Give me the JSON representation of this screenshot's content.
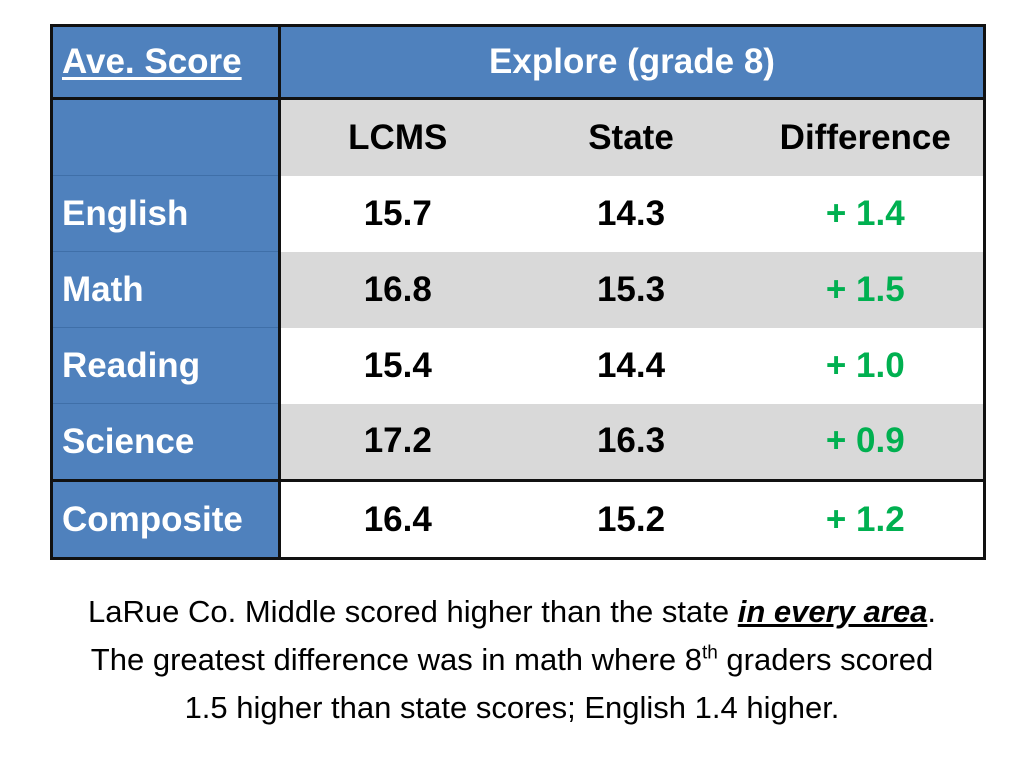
{
  "table": {
    "header": {
      "label": "Ave. Score",
      "group": "Explore (grade 8)"
    },
    "columns": [
      "LCMS",
      "State",
      "Difference"
    ],
    "rows": [
      {
        "subject": "English",
        "lcms": "15.7",
        "state": "14.3",
        "difference": "+ 1.4"
      },
      {
        "subject": "Math",
        "lcms": "16.8",
        "state": "15.3",
        "difference": "+ 1.5"
      },
      {
        "subject": "Reading",
        "lcms": "15.4",
        "state": "14.4",
        "difference": "+ 1.0"
      },
      {
        "subject": "Science",
        "lcms": "17.2",
        "state": "16.3",
        "difference": "+ 0.9"
      },
      {
        "subject": "Composite",
        "lcms": "16.4",
        "state": "15.2",
        "difference": "+ 1.2"
      }
    ]
  },
  "caption": {
    "line1_before": "LaRue Co. Middle scored higher than the state ",
    "line1_emphasis": "in every area",
    "line1_after": ".",
    "line2_before": "The greatest difference was in math where 8",
    "line2_sup": "th",
    "line2_after": " graders scored",
    "line3": "1.5 higher than state scores; English 1.4 higher."
  },
  "colors": {
    "header_blue": "#4f81bd",
    "row_gray": "#d9d9d9",
    "positive_green": "#00b050"
  }
}
